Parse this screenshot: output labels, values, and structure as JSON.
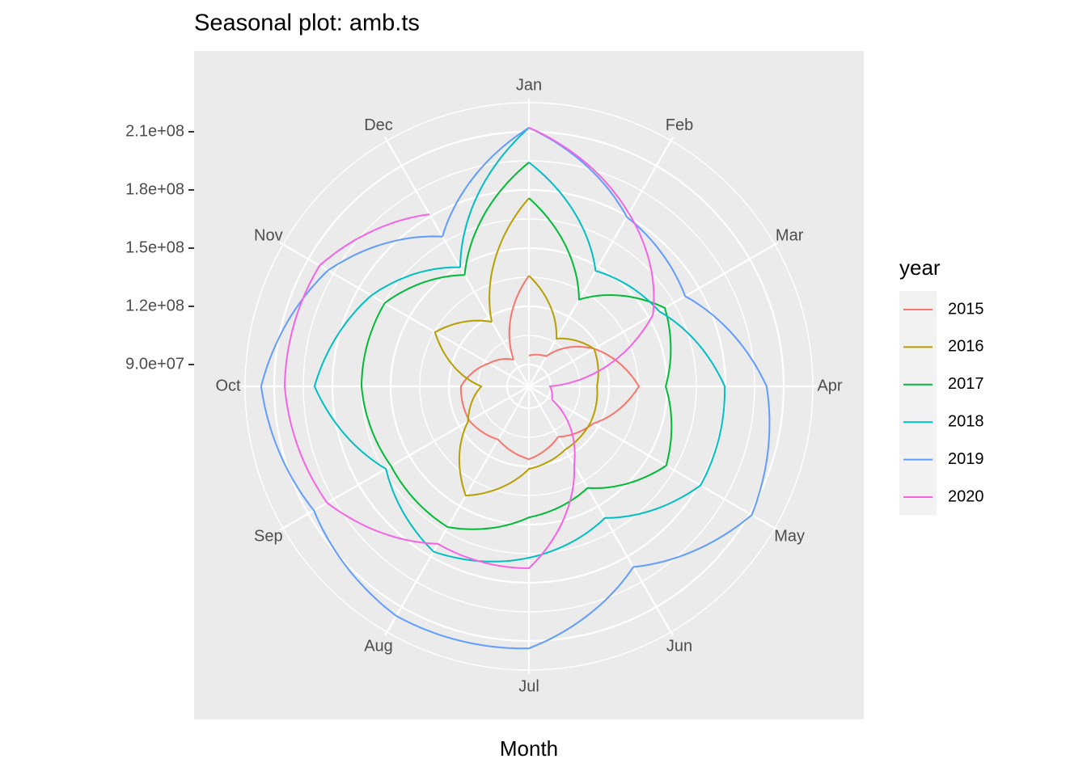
{
  "chart_data": {
    "type": "polar-line",
    "title": "Seasonal plot: amb.ts",
    "xlabel": "Month",
    "legend_title": "year",
    "categories": [
      "Jan",
      "Feb",
      "Mar",
      "Apr",
      "May",
      "Jun",
      "Jul",
      "Aug",
      "Sep",
      "Oct",
      "Nov",
      "Dec"
    ],
    "ylim": [
      78750000,
      233750000
    ],
    "yticks": [
      {
        "value": 90000000,
        "label": "9.0e+07"
      },
      {
        "value": 120000000,
        "label": "1.2e+08"
      },
      {
        "value": 150000000,
        "label": "1.5e+08"
      },
      {
        "value": 180000000,
        "label": "1.8e+08"
      },
      {
        "value": 210000000,
        "label": "2.1e+08"
      }
    ],
    "series": [
      {
        "name": "2015",
        "color": "#f8766d",
        "values": [
          94600000,
          96700000,
          117500000,
          135400000,
          117000000,
          108800000,
          116300000,
          110400000,
          114200000,
          113800000,
          102500000,
          94600000
        ]
      },
      {
        "name": "2016",
        "color": "#b79f00",
        "values": [
          135800000,
          107100000,
          117500000,
          113800000,
          115500000,
          116300000,
          121300000,
          143800000,
          115000000,
          103300000,
          134600000,
          117100000
        ]
      },
      {
        "name": "2017",
        "color": "#00ba38",
        "values": [
          175800000,
          130400000,
          159600000,
          149200000,
          160400000,
          139200000,
          146300000,
          162500000,
          160800000,
          165000000,
          164600000,
          145000000
        ]
      },
      {
        "name": "2018",
        "color": "#00bfc4",
        "values": [
          194200000,
          147500000,
          156200000,
          179600000,
          180800000,
          157100000,
          167100000,
          177100000,
          163800000,
          189200000,
          172500000,
          149600000
        ]
      },
      {
        "name": "2019",
        "color": "#619cff",
        "values": [
          212100000,
          179600000,
          171700000,
          201200000,
          211300000,
          186300000,
          213800000,
          215400000,
          206700000,
          216700000,
          198300000,
          167900000
        ]
      },
      {
        "name": "2020",
        "color": "#f564e3",
        "values": [
          212100000,
          181700000,
          152500000,
          89600000,
          92500000,
          125400000,
          172500000,
          172500000,
          198800000,
          204600000,
          203300000,
          181200000
        ]
      }
    ]
  }
}
